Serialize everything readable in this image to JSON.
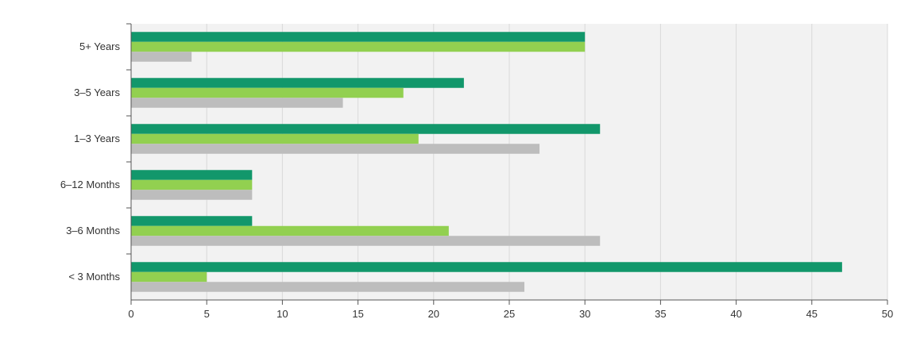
{
  "chart_data": {
    "type": "bar",
    "orientation": "horizontal",
    "categories": [
      "5+ Years",
      "3–5 Years",
      "1–3 Years",
      "6–12 Months",
      "3–6 Months",
      "< 3 Months"
    ],
    "series": [
      {
        "color": "#12976b",
        "values": [
          30,
          22,
          31,
          8,
          8,
          47
        ]
      },
      {
        "color": "#92d050",
        "values": [
          30,
          18,
          19,
          8,
          21,
          5
        ]
      },
      {
        "color": "#bdbdbd",
        "values": [
          4,
          14,
          27,
          8,
          31,
          26
        ]
      }
    ],
    "xlim": [
      0,
      50
    ],
    "xticks": [
      0,
      5,
      10,
      15,
      20,
      25,
      30,
      35,
      40,
      45,
      50
    ],
    "grid": "vertical",
    "plot_background": "#f2f2f2",
    "legend": "none"
  }
}
